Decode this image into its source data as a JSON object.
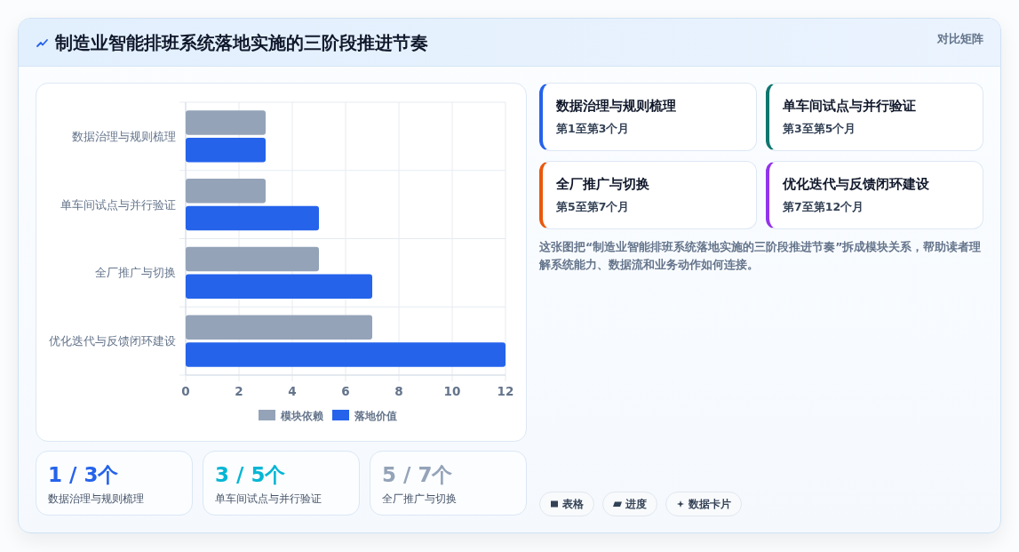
{
  "chart_data": [
    {
      "type": "bar",
      "orientation": "horizontal",
      "title": "制造业智能排班系统落地实施的三阶段推进节奏",
      "annotations": [
        "对比矩阵"
      ],
      "categories": [
        "数据治理与规则梳理",
        "单车间试点与并行验证",
        "全厂推广与切换",
        "优化迭代与反馈闭环建设"
      ],
      "series": [
        {
          "name": "模块依赖",
          "color": "#94a3b8",
          "values": [
            3,
            3,
            5,
            7
          ]
        },
        {
          "name": "落地价值",
          "color": "#2563eb",
          "values": [
            3,
            5,
            7,
            12
          ]
        }
      ],
      "xlim": [
        0,
        12
      ],
      "xticks": [
        0,
        2,
        4,
        6,
        8,
        10,
        12
      ],
      "grid": true,
      "legend": "bottom"
    },
    {
      "type": "other",
      "annotations": [
        "数据治理与规则梳理",
        "第1至第3个月",
        "单车间试点与并行验证",
        "第3至第5个月",
        "全厂推广与切换",
        "第5至第7个月",
        "优化迭代与反馈闭环建设",
        "第7至第12个月",
        "这张图把“制造业智能排班系统落地实施的三阶段推进节奏”拆成模块关系，帮助读者理解系统能力、数据流和业务动作如何连接。",
        "表格",
        "进度",
        "数据卡片"
      ],
      "colors": [
        "#2563eb",
        "#0f766e",
        "#ea580c",
        "#9333ea"
      ]
    },
    {
      "type": "other",
      "annotations": [
        "1 / 3个",
        "数据治理与规则梳理",
        "3 / 5个",
        "单车间试点与并行验证",
        "5 / 7个",
        "全厂推广与切换"
      ],
      "colors": [
        "#2563eb",
        "#06b6d4",
        "#94a3b8"
      ]
    }
  ]
}
